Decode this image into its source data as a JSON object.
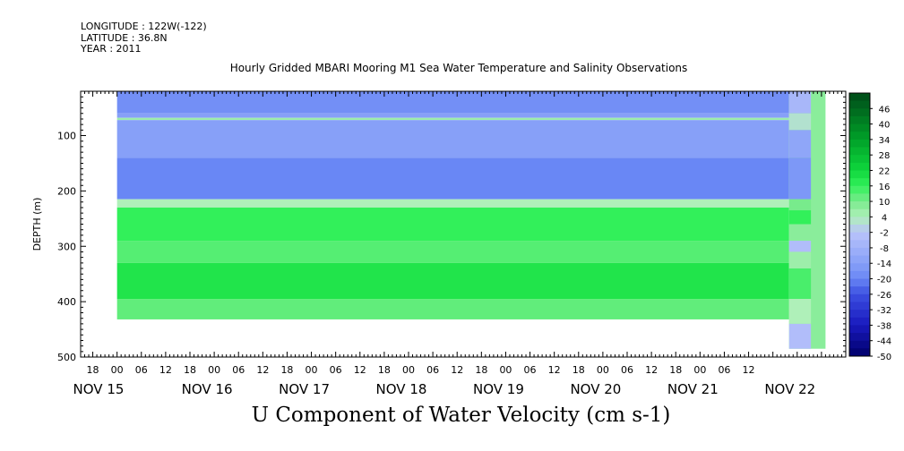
{
  "header": {
    "longitude": "LONGITUDE : 122W(-122)",
    "latitude": "LATITUDE : 36.8N",
    "year": "YEAR : 2011"
  },
  "chart_data": {
    "type": "heatmap",
    "title": "Hourly Gridded MBARI Mooring M1 Sea Water Temperature and Salinity Observations",
    "xlabel": "U Component of Water Velocity (cm s-1)",
    "ylabel": "DEPTH (m)",
    "ylim": [
      500,
      0
    ],
    "yticks": [
      100,
      200,
      300,
      400,
      500
    ],
    "ytick_labels": [
      "100",
      "200",
      "300",
      "400",
      "500"
    ],
    "xlim_hours": [
      -9,
      180
    ],
    "hour_ticks": [
      "18",
      "00",
      "06",
      "12",
      "18",
      "00",
      "06",
      "12",
      "18",
      "00",
      "06",
      "12",
      "18",
      "00",
      "06",
      "12",
      "18",
      "00",
      "06",
      "12",
      "18",
      "00",
      "06",
      "12",
      "18",
      "00",
      "06",
      "12"
    ],
    "date_labels": [
      "NOV 15",
      "NOV 16",
      "NOV 17",
      "NOV 18",
      "NOV 19",
      "NOV 20",
      "NOV 21",
      "NOV 22"
    ],
    "colorbar": {
      "labels": [
        "46",
        "40",
        "34",
        "28",
        "22",
        "16",
        "10",
        "4",
        "-2",
        "-8",
        "-14",
        "-20",
        "-26",
        "-32",
        "-38",
        "-44",
        "-50"
      ],
      "min": -50,
      "max": 52,
      "step": 3
    },
    "bands": [
      {
        "depth_top": 20,
        "depth_bottom": 60,
        "value": -18
      },
      {
        "depth_top": 60,
        "depth_bottom": 68,
        "value": -14
      },
      {
        "depth_top": 68,
        "depth_bottom": 72,
        "value": 6
      },
      {
        "depth_top": 72,
        "depth_bottom": 140,
        "value": -14
      },
      {
        "depth_top": 140,
        "depth_bottom": 215,
        "value": -20
      },
      {
        "depth_top": 215,
        "depth_bottom": 230,
        "value": 4
      },
      {
        "depth_top": 230,
        "depth_bottom": 290,
        "value": 16
      },
      {
        "depth_top": 290,
        "depth_bottom": 330,
        "value": 13
      },
      {
        "depth_top": 330,
        "depth_bottom": 395,
        "value": 19
      },
      {
        "depth_top": 395,
        "depth_bottom": 432,
        "value": 12
      }
    ],
    "data_time_range_hours": [
      0,
      166
    ],
    "data_depth_range": [
      20,
      432
    ],
    "trailing_region": {
      "hour_start": 166,
      "hour_end": 175,
      "depth_bottom": 485
    }
  }
}
